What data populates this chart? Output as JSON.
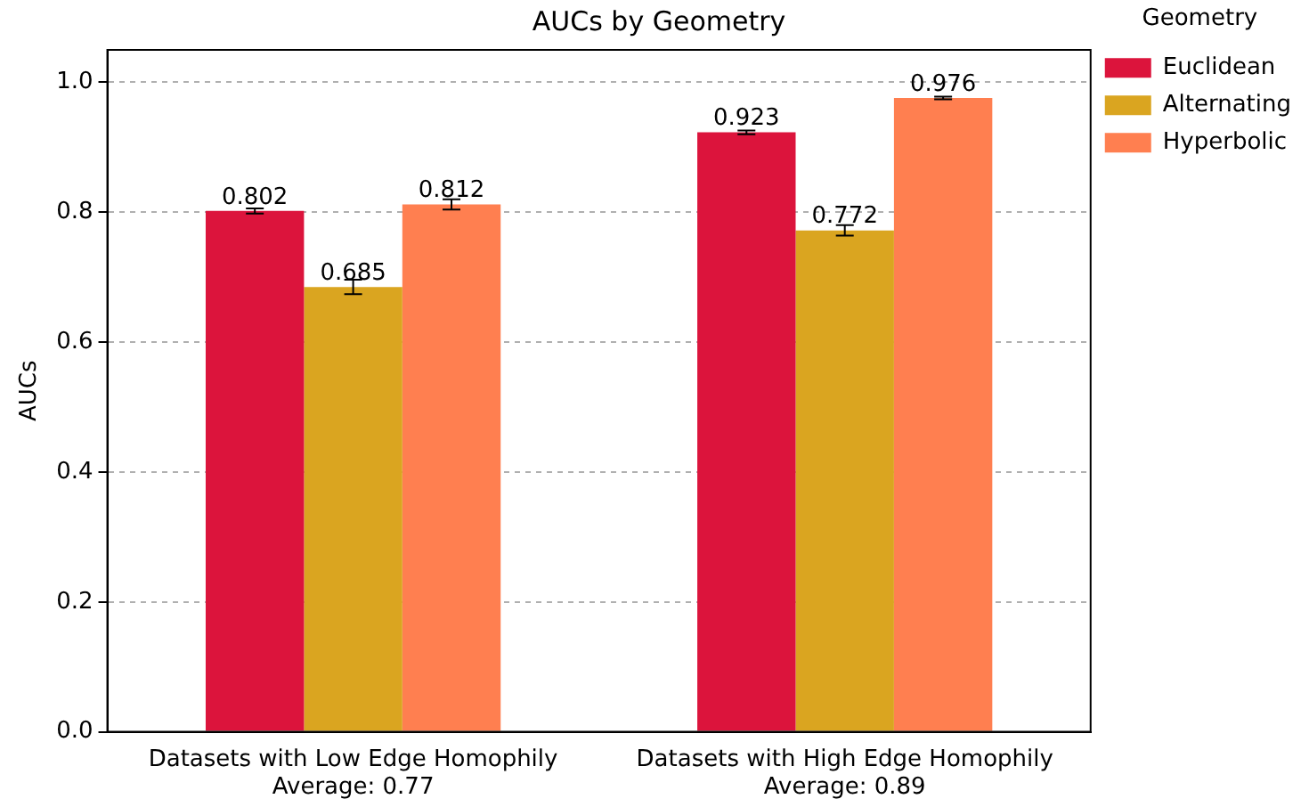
{
  "chart_data": {
    "type": "bar",
    "title": "AUCs by Geometry",
    "ylabel": "AUCs",
    "legend_title": "Geometry",
    "categories": [
      "Datasets with Low Edge Homophily\nAverage: 0.77",
      "Datasets with High Edge Homophily\nAverage: 0.89"
    ],
    "series": [
      {
        "name": "Euclidean",
        "color": "#dc143c",
        "values": [
          0.802,
          0.923
        ],
        "errors": [
          0.004,
          0.003
        ]
      },
      {
        "name": "Alternating",
        "color": "#daa520",
        "values": [
          0.685,
          0.772
        ],
        "errors": [
          0.011,
          0.008
        ]
      },
      {
        "name": "Hyperbolic",
        "color": "#ff7f50",
        "values": [
          0.812,
          0.976
        ],
        "errors": [
          0.008,
          0.002
        ]
      }
    ],
    "ylim": [
      0,
      1.05
    ],
    "yticks": [
      {
        "value": 0,
        "label": "0.0"
      },
      0.2,
      0.4,
      0.6,
      0.8,
      {
        "value": 1,
        "label": "1.0"
      }
    ],
    "grid": "y",
    "legend": "top right",
    "data_labels": true
  }
}
